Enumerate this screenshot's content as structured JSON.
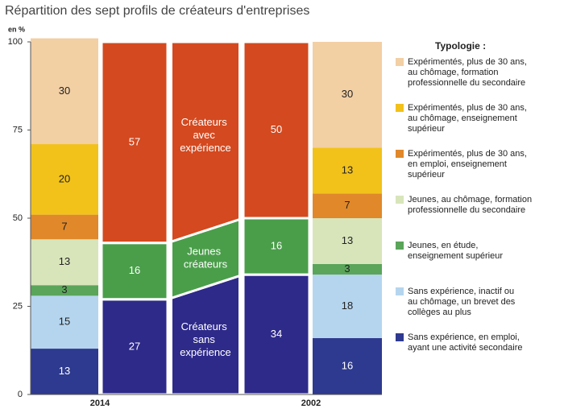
{
  "chart_data": {
    "type": "stacked_bar",
    "title": "Répartition des sept profils de créateurs d'entreprises",
    "y_unit": "en %",
    "ylim": [
      0,
      100
    ],
    "yticks": [
      0,
      25,
      50,
      75,
      100
    ],
    "categories": [
      "2014",
      "2002"
    ],
    "legend_title": "Typologie :",
    "series": [
      {
        "name": "Expérimentés, plus de 30 ans, au chômage, formation professionnelle du secondaire",
        "color": "#f3cfa4",
        "values": [
          30,
          30
        ]
      },
      {
        "name": "Expérimentés, plus de 30 ans, au chômage, enseignement supérieur",
        "color": "#f2c21b",
        "values": [
          20,
          13
        ]
      },
      {
        "name": "Expérimentés, plus de 30 ans, en emploi, enseignement supérieur",
        "color": "#e0882a",
        "values": [
          7,
          7
        ]
      },
      {
        "name": "Jeunes, au chômage, formation professionnelle du secondaire",
        "color": "#d8e5bb",
        "values": [
          13,
          13
        ]
      },
      {
        "name": "Jeunes, en étude, enseignement supérieur",
        "color": "#5aa55a",
        "values": [
          3,
          3
        ]
      },
      {
        "name": "Sans expérience, inactif ou au chômage, un brevet des collèges au plus",
        "color": "#b5d5ef",
        "values": [
          15,
          18
        ]
      },
      {
        "name": "Sans expérience, en emploi, ayant une activité secondaire",
        "color": "#2e3a8f",
        "values": [
          13,
          16
        ]
      }
    ],
    "group_series": [
      {
        "name": "Créateurs avec expérience",
        "color": "#d4491f",
        "values": [
          57,
          50
        ]
      },
      {
        "name": "Jeunes créateurs",
        "color": "#4a9e4a",
        "values": [
          16,
          16
        ]
      },
      {
        "name": "Créateurs sans expérience",
        "color": "#2e2a8a",
        "values": [
          27,
          34
        ]
      }
    ]
  }
}
